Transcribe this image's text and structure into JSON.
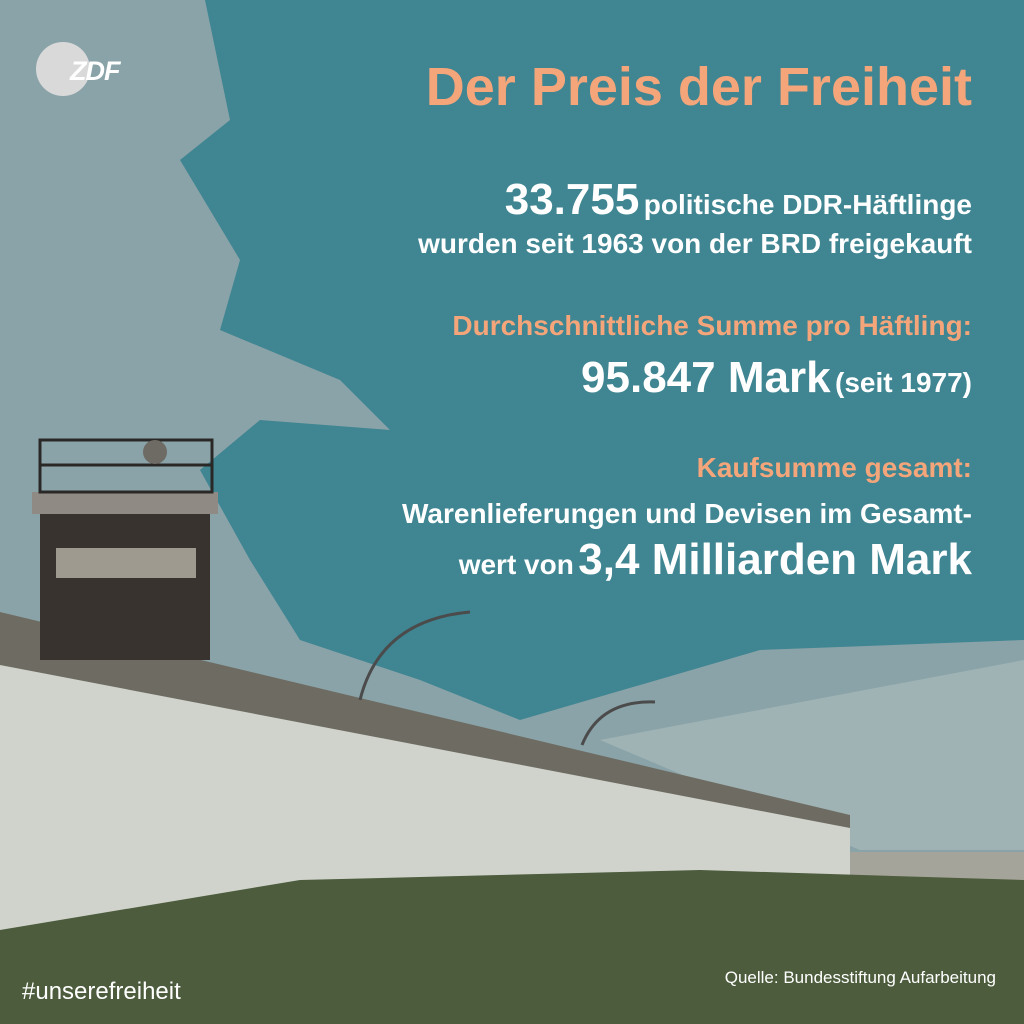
{
  "logo": "ZDF",
  "title": "Der Preis der Freiheit",
  "stat_prisoners": {
    "number": "33.755",
    "text": "politische DDR-Häftlinge",
    "line2": "wurden seit 1963 von der BRD freigekauft"
  },
  "stat_average": {
    "label": "Durchschnittliche Summe pro Häftling:",
    "value": "95.847 Mark",
    "note": "(seit 1977)"
  },
  "stat_total": {
    "label": "Kaufsumme gesamt:",
    "line1": "Warenlieferungen und Devisen im Gesamt-",
    "prefix": "wert von",
    "value": "3,4 Milliarden Mark"
  },
  "hashtag": "#unserefreiheit",
  "source": "Quelle: Bundesstiftung Aufarbeitung"
}
